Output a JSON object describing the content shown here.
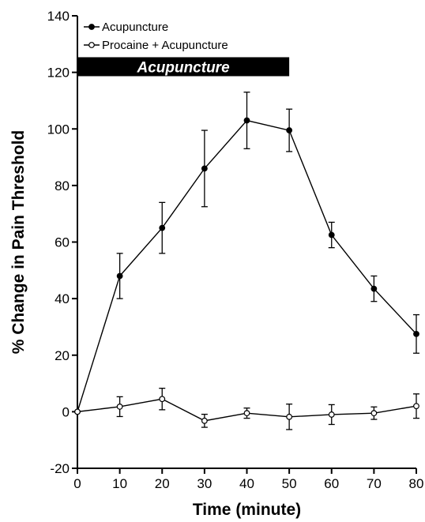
{
  "chart_data": {
    "type": "line",
    "xlabel": "Time (minute)",
    "ylabel": "% Change in Pain Threshold",
    "xlim": [
      0,
      80
    ],
    "ylim": [
      -20,
      140
    ],
    "xticks": [
      0,
      10,
      20,
      30,
      40,
      50,
      60,
      70,
      80
    ],
    "yticks": [
      -20,
      0,
      20,
      40,
      60,
      80,
      100,
      120,
      140
    ],
    "grid": false,
    "legend_position": "top-left",
    "x": [
      0,
      10,
      20,
      30,
      40,
      50,
      60,
      70,
      80
    ],
    "series": [
      {
        "name": "Acupuncture",
        "marker": "filled-circle",
        "values": [
          0,
          48,
          65,
          86,
          103,
          99.5,
          62.5,
          43.5,
          27.5
        ],
        "error": [
          0,
          8,
          9,
          13.5,
          10,
          7.5,
          4.5,
          4.5,
          6.8
        ]
      },
      {
        "name": "Procaine + Acupuncture",
        "marker": "open-circle",
        "values": [
          0,
          1.8,
          4.5,
          -3.2,
          -0.5,
          -1.8,
          -1,
          -0.5,
          2
        ],
        "error": [
          0,
          3.5,
          3.8,
          2.3,
          1.8,
          4.5,
          3.5,
          2.2,
          4.3
        ]
      }
    ],
    "annotations": [
      {
        "text": "Acupuncture",
        "x_start": 0,
        "x_end": 50,
        "y_center": 122
      }
    ]
  }
}
